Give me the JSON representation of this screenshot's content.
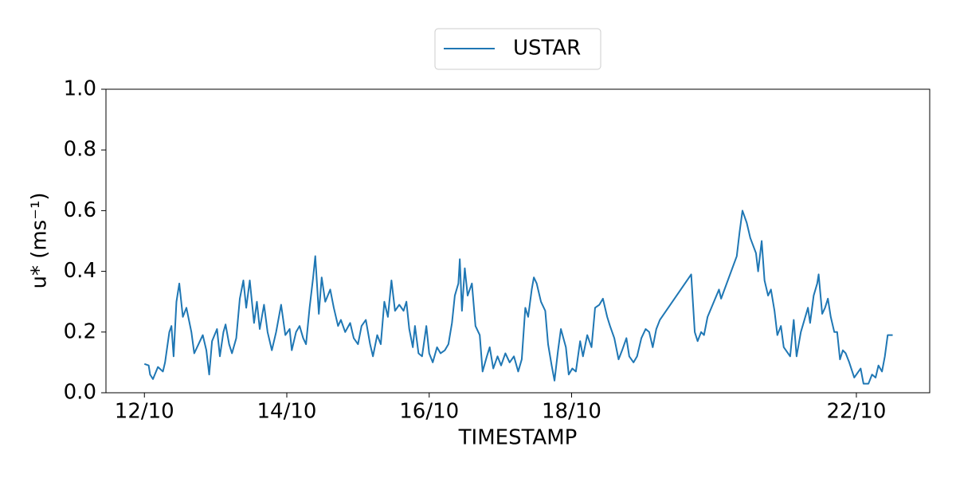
{
  "chart_data": {
    "type": "line",
    "x_label": "TIMESTAMP",
    "y_label": "u* (ms⁻¹)",
    "xlim": [
      11.46,
      23.03
    ],
    "ylim": [
      0,
      1.0
    ],
    "xticks": [
      {
        "value": 12,
        "label": "12/10"
      },
      {
        "value": 14,
        "label": "14/10"
      },
      {
        "value": 16,
        "label": "16/10"
      },
      {
        "value": 18,
        "label": "18/10"
      },
      {
        "value": 22,
        "label": "22/10"
      }
    ],
    "yticks": [
      {
        "value": 0,
        "label": "0.0"
      },
      {
        "value": 0.2,
        "label": "0.2"
      },
      {
        "value": 0.4,
        "label": "0.4"
      },
      {
        "value": 0.6,
        "label": "0.6"
      },
      {
        "value": 0.8,
        "label": "0.8"
      },
      {
        "value": 1.0,
        "label": "1.0"
      }
    ],
    "legend": "upper center",
    "x": [
      12.0,
      12.06,
      12.08,
      12.12,
      12.19,
      12.26,
      12.29,
      12.35,
      12.38,
      12.41,
      12.45,
      12.49,
      12.54,
      12.59,
      12.66,
      12.7,
      12.76,
      12.82,
      12.87,
      12.91,
      12.95,
      13.02,
      13.06,
      13.11,
      13.14,
      13.19,
      13.23,
      13.29,
      13.34,
      13.39,
      13.43,
      13.48,
      13.54,
      13.58,
      13.62,
      13.68,
      13.73,
      13.79,
      13.85,
      13.92,
      13.98,
      14.04,
      14.07,
      14.13,
      14.18,
      14.23,
      14.27,
      14.32,
      14.37,
      14.4,
      14.45,
      14.49,
      14.54,
      14.61,
      14.66,
      14.72,
      14.76,
      14.82,
      14.89,
      14.94,
      15.0,
      15.05,
      15.11,
      15.17,
      15.21,
      15.27,
      15.32,
      15.37,
      15.42,
      15.47,
      15.52,
      15.58,
      15.64,
      15.68,
      15.72,
      15.77,
      15.8,
      15.85,
      15.9,
      15.96,
      16.0,
      16.05,
      16.11,
      16.16,
      16.22,
      16.27,
      16.32,
      16.36,
      16.41,
      16.43,
      16.46,
      16.5,
      16.54,
      16.6,
      16.65,
      16.71,
      16.75,
      16.81,
      16.85,
      16.9,
      16.96,
      17.01,
      17.07,
      17.13,
      17.19,
      17.25,
      17.3,
      17.35,
      17.39,
      17.44,
      17.47,
      17.51,
      17.57,
      17.63,
      17.67,
      17.72,
      17.76,
      17.81,
      17.85,
      17.92,
      17.96,
      18.01,
      18.06,
      18.12,
      18.16,
      18.22,
      18.28,
      18.33,
      18.39,
      18.44,
      18.5,
      18.54,
      18.6,
      18.66,
      18.71,
      18.77,
      18.81,
      18.87,
      18.92,
      18.98,
      19.04,
      19.09,
      19.14,
      19.19,
      19.24,
      19.68,
      19.73,
      19.77,
      19.82,
      19.86,
      19.91,
      20.07,
      20.1,
      20.32,
      20.36,
      20.4,
      20.46,
      20.51,
      20.59,
      20.62,
      20.67,
      20.71,
      20.76,
      20.8,
      20.85,
      20.89,
      20.94,
      20.98,
      21.07,
      21.12,
      21.16,
      21.22,
      21.27,
      21.32,
      21.35,
      21.4,
      21.45,
      21.47,
      21.52,
      21.56,
      21.6,
      21.64,
      21.69,
      21.73,
      21.77,
      21.81,
      21.85,
      21.9,
      21.97,
      22.06,
      22.1,
      22.17,
      22.22,
      22.27,
      22.31,
      22.36,
      22.4,
      22.44,
      22.48,
      22.51
    ],
    "series": [
      {
        "name": "USTAR",
        "color": "#1f77b4",
        "values": [
          0.095,
          0.09,
          0.06,
          0.045,
          0.085,
          0.07,
          0.1,
          0.2,
          0.22,
          0.12,
          0.3,
          0.36,
          0.25,
          0.28,
          0.2,
          0.13,
          0.16,
          0.19,
          0.14,
          0.06,
          0.17,
          0.21,
          0.12,
          0.2,
          0.225,
          0.16,
          0.13,
          0.18,
          0.31,
          0.37,
          0.28,
          0.37,
          0.23,
          0.3,
          0.21,
          0.29,
          0.2,
          0.14,
          0.2,
          0.29,
          0.19,
          0.21,
          0.14,
          0.2,
          0.22,
          0.18,
          0.16,
          0.28,
          0.38,
          0.45,
          0.26,
          0.38,
          0.3,
          0.34,
          0.28,
          0.22,
          0.24,
          0.2,
          0.23,
          0.18,
          0.16,
          0.22,
          0.24,
          0.16,
          0.12,
          0.19,
          0.16,
          0.3,
          0.25,
          0.37,
          0.27,
          0.29,
          0.27,
          0.3,
          0.21,
          0.15,
          0.22,
          0.13,
          0.12,
          0.22,
          0.13,
          0.1,
          0.15,
          0.13,
          0.14,
          0.16,
          0.23,
          0.32,
          0.36,
          0.44,
          0.27,
          0.41,
          0.32,
          0.36,
          0.22,
          0.19,
          0.07,
          0.12,
          0.15,
          0.08,
          0.12,
          0.09,
          0.13,
          0.1,
          0.12,
          0.07,
          0.11,
          0.28,
          0.25,
          0.34,
          0.38,
          0.36,
          0.3,
          0.27,
          0.16,
          0.09,
          0.04,
          0.14,
          0.21,
          0.15,
          0.06,
          0.08,
          0.07,
          0.17,
          0.12,
          0.19,
          0.15,
          0.28,
          0.29,
          0.31,
          0.25,
          0.22,
          0.18,
          0.11,
          0.14,
          0.18,
          0.12,
          0.1,
          0.12,
          0.18,
          0.21,
          0.2,
          0.15,
          0.21,
          0.24,
          0.39,
          0.2,
          0.17,
          0.2,
          0.19,
          0.25,
          0.34,
          0.31,
          0.45,
          0.53,
          0.6,
          0.56,
          0.51,
          0.46,
          0.4,
          0.5,
          0.37,
          0.32,
          0.34,
          0.27,
          0.19,
          0.22,
          0.15,
          0.12,
          0.24,
          0.12,
          0.2,
          0.24,
          0.28,
          0.23,
          0.32,
          0.36,
          0.39,
          0.26,
          0.28,
          0.31,
          0.25,
          0.2,
          0.2,
          0.11,
          0.14,
          0.13,
          0.1,
          0.05,
          0.08,
          0.03,
          0.03,
          0.06,
          0.05,
          0.09,
          0.07,
          0.12,
          0.19,
          0.19,
          0.19
        ]
      }
    ]
  }
}
